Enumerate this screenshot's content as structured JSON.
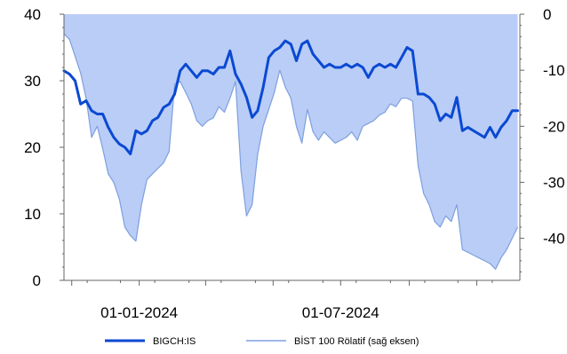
{
  "chart_data": {
    "type": "line",
    "x_axis": {
      "type": "date",
      "range": [
        "2023-10-25",
        "2024-12-10"
      ],
      "tick_labels": [
        {
          "date": "2024-01-01",
          "label": "01-01-2024"
        },
        {
          "date": "2024-07-01",
          "label": "01-07-2024"
        }
      ],
      "minor_ticks": [
        "2023-11-01",
        "2024-01-01",
        "2024-03-01",
        "2024-05-01",
        "2024-07-01",
        "2024-09-01",
        "2024-11-01"
      ]
    },
    "y_left": {
      "min": 0,
      "max": 40,
      "ticks": [
        0,
        10,
        20,
        30,
        40
      ]
    },
    "y_right": {
      "min": -47.5,
      "max": 0,
      "ticks": [
        0,
        -10,
        -20,
        -30,
        -40
      ]
    },
    "grid": false,
    "legend_position": "bottom",
    "series": [
      {
        "name": "BİST 100 Rölatif (sağ eksen)",
        "axis": "right",
        "style": "area",
        "color": "#7f9fde",
        "fill": "#b9cdf6",
        "points": [
          [
            "2023-10-25",
            -3.5
          ],
          [
            "2023-10-30",
            -4.5
          ],
          [
            "2023-11-04",
            -7.5
          ],
          [
            "2023-11-09",
            -10.5
          ],
          [
            "2023-11-14",
            -15
          ],
          [
            "2023-11-19",
            -22
          ],
          [
            "2023-11-24",
            -20
          ],
          [
            "2023-11-29",
            -24
          ],
          [
            "2023-12-04",
            -28.5
          ],
          [
            "2023-12-09",
            -30
          ],
          [
            "2023-12-14",
            -33
          ],
          [
            "2023-12-19",
            -38
          ],
          [
            "2023-12-24",
            -39.5
          ],
          [
            "2023-12-29",
            -40.5
          ],
          [
            "2024-01-03",
            -34
          ],
          [
            "2024-01-08",
            -29.5
          ],
          [
            "2024-01-13",
            -28.5
          ],
          [
            "2024-01-18",
            -27.5
          ],
          [
            "2024-01-23",
            -26.5
          ],
          [
            "2024-01-28",
            -24.5
          ],
          [
            "2024-02-02",
            -12.5
          ],
          [
            "2024-02-07",
            -12
          ],
          [
            "2024-02-12",
            -14
          ],
          [
            "2024-02-17",
            -16
          ],
          [
            "2024-02-22",
            -19
          ],
          [
            "2024-02-27",
            -20
          ],
          [
            "2024-03-03",
            -19
          ],
          [
            "2024-03-08",
            -18.5
          ],
          [
            "2024-03-13",
            -16.5
          ],
          [
            "2024-03-18",
            -17.5
          ],
          [
            "2024-03-23",
            -15
          ],
          [
            "2024-03-28",
            -12
          ],
          [
            "2024-04-02",
            -28
          ],
          [
            "2024-04-07",
            -36
          ],
          [
            "2024-04-12",
            -34
          ],
          [
            "2024-04-17",
            -25
          ],
          [
            "2024-04-22",
            -20
          ],
          [
            "2024-04-27",
            -17
          ],
          [
            "2024-05-02",
            -14
          ],
          [
            "2024-05-07",
            -10
          ],
          [
            "2024-05-12",
            -13
          ],
          [
            "2024-05-17",
            -15
          ],
          [
            "2024-05-22",
            -20
          ],
          [
            "2024-05-27",
            -23
          ],
          [
            "2024-06-01",
            -17
          ],
          [
            "2024-06-06",
            -21
          ],
          [
            "2024-06-11",
            -22.5
          ],
          [
            "2024-06-16",
            -21
          ],
          [
            "2024-06-21",
            -22
          ],
          [
            "2024-06-26",
            -23
          ],
          [
            "2024-07-01",
            -22.5
          ],
          [
            "2024-07-06",
            -22
          ],
          [
            "2024-07-11",
            -21
          ],
          [
            "2024-07-16",
            -22.5
          ],
          [
            "2024-07-21",
            -20
          ],
          [
            "2024-07-26",
            -19.5
          ],
          [
            "2024-07-31",
            -19
          ],
          [
            "2024-08-05",
            -18
          ],
          [
            "2024-08-10",
            -17.5
          ],
          [
            "2024-08-15",
            -16
          ],
          [
            "2024-08-20",
            -16.5
          ],
          [
            "2024-08-25",
            -15
          ],
          [
            "2024-08-30",
            -15
          ],
          [
            "2024-09-04",
            -15.5
          ],
          [
            "2024-09-09",
            -27
          ],
          [
            "2024-09-14",
            -32
          ],
          [
            "2024-09-19",
            -34
          ],
          [
            "2024-09-24",
            -37
          ],
          [
            "2024-09-29",
            -38
          ],
          [
            "2024-10-04",
            -36
          ],
          [
            "2024-10-09",
            -37
          ],
          [
            "2024-10-14",
            -34
          ],
          [
            "2024-10-19",
            -42
          ],
          [
            "2024-10-24",
            -42.5
          ],
          [
            "2024-10-29",
            -43
          ],
          [
            "2024-11-03",
            -43.5
          ],
          [
            "2024-11-08",
            -44
          ],
          [
            "2024-11-13",
            -44.5
          ],
          [
            "2024-11-18",
            -45.5
          ],
          [
            "2024-11-23",
            -43.5
          ],
          [
            "2024-11-28",
            -42
          ],
          [
            "2024-12-03",
            -40
          ],
          [
            "2024-12-08",
            -38
          ]
        ]
      },
      {
        "name": "BIGCH:IS",
        "axis": "left",
        "style": "line",
        "color": "#0b49d3",
        "points": [
          [
            "2023-10-25",
            31.5
          ],
          [
            "2023-10-30",
            31
          ],
          [
            "2023-11-04",
            30
          ],
          [
            "2023-11-09",
            26.5
          ],
          [
            "2023-11-14",
            27
          ],
          [
            "2023-11-19",
            25.5
          ],
          [
            "2023-11-24",
            25
          ],
          [
            "2023-11-29",
            25
          ],
          [
            "2023-12-04",
            23
          ],
          [
            "2023-12-09",
            21.5
          ],
          [
            "2023-12-14",
            20.5
          ],
          [
            "2023-12-19",
            20
          ],
          [
            "2023-12-24",
            19
          ],
          [
            "2023-12-29",
            22.5
          ],
          [
            "2024-01-03",
            22
          ],
          [
            "2024-01-08",
            22.5
          ],
          [
            "2024-01-13",
            24
          ],
          [
            "2024-01-18",
            24.5
          ],
          [
            "2024-01-23",
            26
          ],
          [
            "2024-01-28",
            26.5
          ],
          [
            "2024-02-02",
            28
          ],
          [
            "2024-02-07",
            31.5
          ],
          [
            "2024-02-12",
            32.5
          ],
          [
            "2024-02-17",
            31.5
          ],
          [
            "2024-02-22",
            30.5
          ],
          [
            "2024-02-27",
            31.5
          ],
          [
            "2024-03-03",
            31.5
          ],
          [
            "2024-03-08",
            31
          ],
          [
            "2024-03-13",
            32
          ],
          [
            "2024-03-18",
            32
          ],
          [
            "2024-03-23",
            34.5
          ],
          [
            "2024-03-28",
            31
          ],
          [
            "2024-04-02",
            29.5
          ],
          [
            "2024-04-07",
            27.5
          ],
          [
            "2024-04-12",
            24.5
          ],
          [
            "2024-04-17",
            25.5
          ],
          [
            "2024-04-22",
            29
          ],
          [
            "2024-04-27",
            33.5
          ],
          [
            "2024-05-02",
            34.5
          ],
          [
            "2024-05-07",
            35
          ],
          [
            "2024-05-12",
            36
          ],
          [
            "2024-05-17",
            35.5
          ],
          [
            "2024-05-22",
            33
          ],
          [
            "2024-05-27",
            35.5
          ],
          [
            "2024-06-01",
            36
          ],
          [
            "2024-06-06",
            34
          ],
          [
            "2024-06-11",
            33
          ],
          [
            "2024-06-16",
            32
          ],
          [
            "2024-06-21",
            32.5
          ],
          [
            "2024-06-26",
            32
          ],
          [
            "2024-07-01",
            32
          ],
          [
            "2024-07-06",
            32.5
          ],
          [
            "2024-07-11",
            32
          ],
          [
            "2024-07-16",
            32.5
          ],
          [
            "2024-07-21",
            32
          ],
          [
            "2024-07-26",
            30.5
          ],
          [
            "2024-07-31",
            32
          ],
          [
            "2024-08-05",
            32.5
          ],
          [
            "2024-08-10",
            32
          ],
          [
            "2024-08-15",
            32.5
          ],
          [
            "2024-08-20",
            32
          ],
          [
            "2024-08-25",
            33.5
          ],
          [
            "2024-08-30",
            35
          ],
          [
            "2024-09-04",
            34.5
          ],
          [
            "2024-09-09",
            28
          ],
          [
            "2024-09-14",
            28
          ],
          [
            "2024-09-19",
            27.5
          ],
          [
            "2024-09-24",
            26.5
          ],
          [
            "2024-09-29",
            24
          ],
          [
            "2024-10-04",
            25
          ],
          [
            "2024-10-09",
            24.5
          ],
          [
            "2024-10-14",
            27.5
          ],
          [
            "2024-10-19",
            22.5
          ],
          [
            "2024-10-24",
            23
          ],
          [
            "2024-10-29",
            22.5
          ],
          [
            "2024-11-03",
            22
          ],
          [
            "2024-11-08",
            21.5
          ],
          [
            "2024-11-13",
            23
          ],
          [
            "2024-11-18",
            21.5
          ],
          [
            "2024-11-23",
            23
          ],
          [
            "2024-11-28",
            24
          ],
          [
            "2024-12-03",
            25.5
          ],
          [
            "2024-12-08",
            25.5
          ]
        ]
      }
    ],
    "legend": [
      {
        "label": "BIGCH:IS",
        "color": "#0b49d3",
        "style": "line-thick"
      },
      {
        "label": "BİST 100 Rölatif (sağ eksen)",
        "color": "#7f9fde",
        "style": "line-thin"
      }
    ]
  }
}
